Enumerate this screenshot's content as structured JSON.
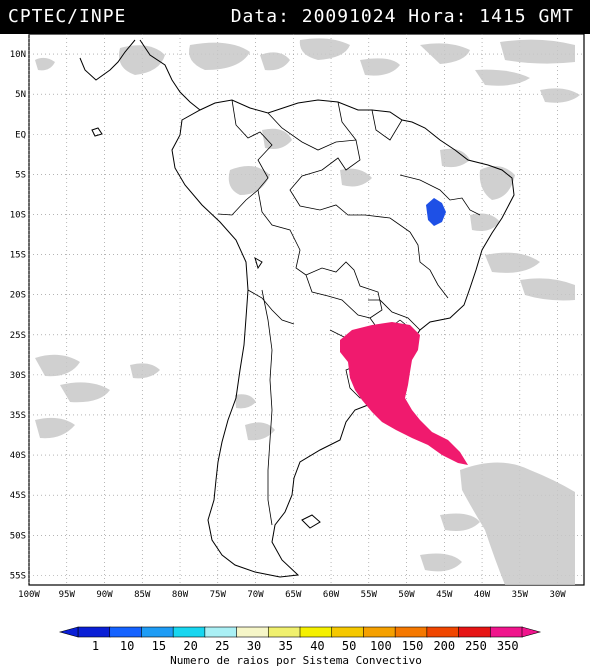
{
  "header": {
    "left": "CPTEC/INPE",
    "right": "Data: 20091024 Hora: 1415 GMT"
  },
  "map": {
    "lat_labels": [
      "10N",
      "5N",
      "EQ",
      "5S",
      "10S",
      "15S",
      "20S",
      "25S",
      "30S",
      "35S",
      "40S",
      "45S",
      "50S",
      "55S"
    ],
    "lon_labels": [
      "100W",
      "95W",
      "90W",
      "85W",
      "80W",
      "75W",
      "70W",
      "65W",
      "60W",
      "55W",
      "50W",
      "45W",
      "40W",
      "35W",
      "30W"
    ]
  },
  "colorbar": {
    "labels": [
      "1",
      "10",
      "15",
      "20",
      "25",
      "30",
      "35",
      "40",
      "50",
      "100",
      "150",
      "200",
      "250",
      "350"
    ],
    "colors": [
      "#0a1fd6",
      "#1462ff",
      "#1e9cf5",
      "#18d6f0",
      "#aaf0f5",
      "#f6f6c8",
      "#f0f06e",
      "#f5f000",
      "#f5c800",
      "#f5a000",
      "#f57800",
      "#f04600",
      "#e61414",
      "#f0148c"
    ],
    "caption": "Numero de raios por Sistema Convectivo"
  },
  "layers": {
    "lightning_color": "#f01a6e",
    "lightning_secondary_color": "#1e50e6",
    "cloud_color": "#c8c8c8"
  }
}
